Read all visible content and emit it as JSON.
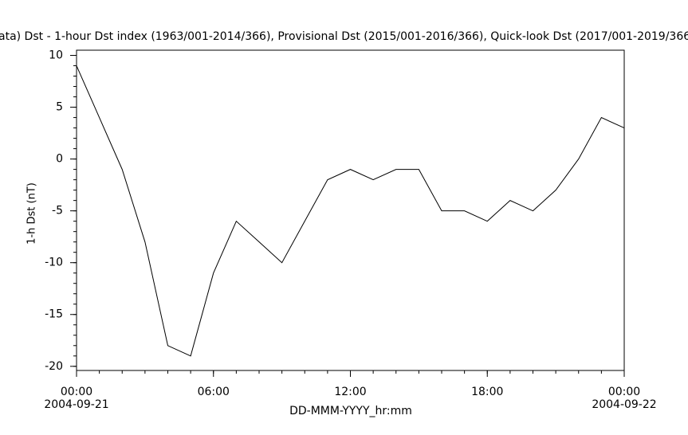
{
  "chart_data": {
    "type": "line",
    "title": "ata)  Dst - 1-hour Dst index (1963/001-2014/366), Provisional Dst (2015/001-2016/366), Quick-look Dst (2017/001-2019/366",
    "xlabel": "DD-MMM-YYYY_hr:mm",
    "ylabel": "1-h Dst (nT)",
    "x": [
      0,
      1,
      2,
      3,
      4,
      5,
      6,
      7,
      8,
      9,
      10,
      11,
      12,
      13,
      14,
      15,
      16,
      17,
      18,
      19,
      20,
      21,
      22,
      23,
      24
    ],
    "series": [
      {
        "color": "#000000",
        "values": [
          9,
          4,
          -1,
          -8,
          -18,
          -19,
          -11,
          -6,
          -8,
          -10,
          -6,
          -2,
          -1,
          -2,
          -1,
          -1,
          -5,
          -5,
          -6,
          -4,
          -5,
          -3,
          0,
          4,
          3
        ]
      }
    ],
    "xlim": [
      0,
      24
    ],
    "xticks": [
      {
        "value": 0,
        "label": "00:00"
      },
      {
        "value": 6,
        "label": "06:00"
      },
      {
        "value": 12,
        "label": "12:00"
      },
      {
        "value": 18,
        "label": "18:00"
      },
      {
        "value": 24,
        "label": "00:00"
      }
    ],
    "date_labels": [
      {
        "value": 0,
        "label": "2004-09-21"
      },
      {
        "value": 24,
        "label": "2004-09-22"
      }
    ],
    "ylim": [
      -20.4,
      10.5
    ],
    "yticks": [
      10,
      5,
      0,
      -5,
      -10,
      -15,
      -20
    ],
    "minor_ticks": true,
    "grid": false
  }
}
